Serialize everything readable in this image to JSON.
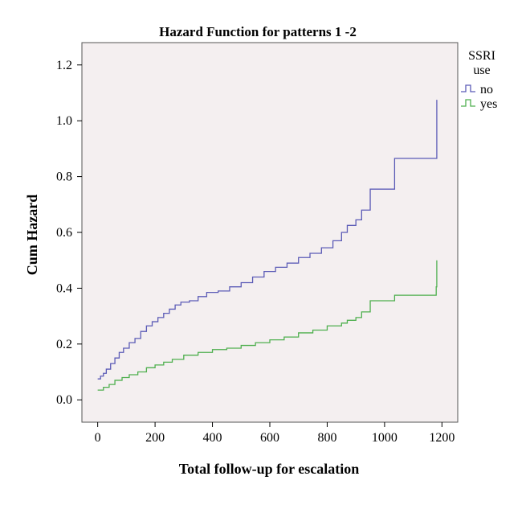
{
  "chart_data": {
    "type": "line",
    "step": true,
    "title": "Hazard Function for patterns 1 -2",
    "xlabel": "Total follow-up for escalation",
    "ylabel": "Cum Hazard",
    "xlim": [
      -55,
      1255
    ],
    "ylim": [
      -0.08,
      1.28
    ],
    "xticks": [
      0,
      200,
      400,
      600,
      800,
      1000,
      1200
    ],
    "xtick_labels": [
      "0",
      "200",
      "400",
      "600",
      "800",
      "1000",
      "1200"
    ],
    "yticks": [
      0.0,
      0.2,
      0.4,
      0.6,
      0.8,
      1.0,
      1.2
    ],
    "ytick_labels": [
      "0.0",
      "0.2",
      "0.4",
      "0.6",
      "0.8",
      "1.0",
      "1.2"
    ],
    "grid": false,
    "legend": {
      "title_lines": [
        "SSRI",
        "use"
      ],
      "placement": "right"
    },
    "series": [
      {
        "name": "no",
        "color": "#5b5bb6",
        "x": [
          0,
          10,
          20,
          30,
          45,
          60,
          75,
          90,
          110,
          130,
          150,
          170,
          190,
          210,
          230,
          250,
          270,
          290,
          320,
          350,
          380,
          420,
          460,
          500,
          540,
          580,
          620,
          660,
          700,
          740,
          780,
          820,
          850,
          870,
          900,
          920,
          950,
          1035,
          1180,
          1182
        ],
        "y": [
          0.075,
          0.085,
          0.095,
          0.11,
          0.13,
          0.15,
          0.17,
          0.185,
          0.205,
          0.22,
          0.245,
          0.265,
          0.28,
          0.295,
          0.31,
          0.325,
          0.34,
          0.35,
          0.355,
          0.37,
          0.385,
          0.39,
          0.405,
          0.42,
          0.44,
          0.46,
          0.475,
          0.49,
          0.51,
          0.525,
          0.545,
          0.57,
          0.6,
          0.625,
          0.645,
          0.68,
          0.755,
          0.865,
          0.865,
          1.075
        ]
      },
      {
        "name": "yes",
        "color": "#4eaf4e",
        "x": [
          0,
          20,
          40,
          60,
          85,
          110,
          140,
          170,
          200,
          230,
          260,
          300,
          350,
          400,
          450,
          500,
          550,
          600,
          650,
          700,
          750,
          800,
          850,
          870,
          900,
          920,
          950,
          1035,
          1180,
          1182
        ],
        "y": [
          0.035,
          0.045,
          0.055,
          0.07,
          0.08,
          0.09,
          0.1,
          0.115,
          0.125,
          0.135,
          0.145,
          0.16,
          0.17,
          0.18,
          0.185,
          0.195,
          0.205,
          0.215,
          0.225,
          0.24,
          0.25,
          0.265,
          0.275,
          0.285,
          0.295,
          0.315,
          0.355,
          0.375,
          0.405,
          0.5
        ]
      }
    ]
  }
}
